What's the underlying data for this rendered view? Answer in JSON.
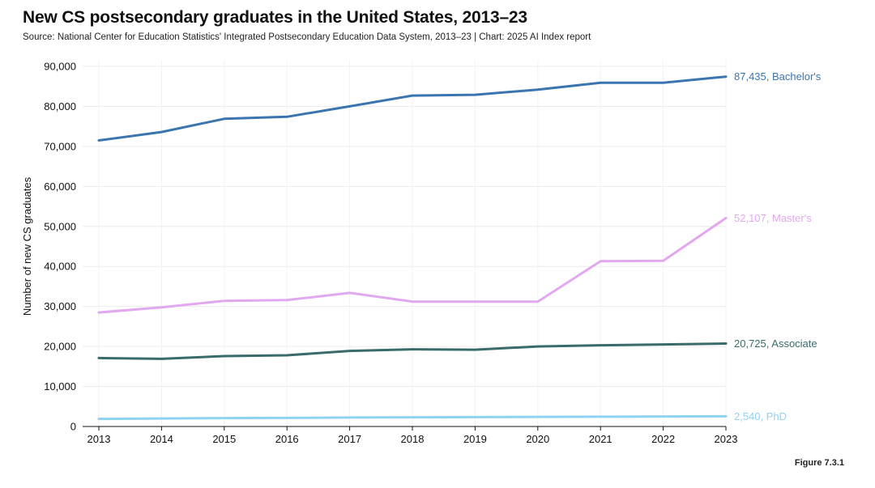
{
  "title": "New CS postsecondary graduates in the United States, 2013–23",
  "subtitle": "Source: National Center for Education Statistics' Integrated Postsecondary Education Data System, 2013–23 | Chart: 2025 AI Index report",
  "figure_label": "Figure 7.3.1",
  "chart_data": {
    "type": "line",
    "title": "New CS postsecondary graduates in the United States, 2013–23",
    "xlabel": "",
    "ylabel": "Number of new CS graduates",
    "ylim": [
      0,
      90000
    ],
    "yticks": [
      0,
      10000,
      20000,
      30000,
      40000,
      50000,
      60000,
      70000,
      80000,
      90000
    ],
    "ytick_labels": [
      "0",
      "10,000",
      "20,000",
      "30,000",
      "40,000",
      "50,000",
      "60,000",
      "70,000",
      "80,000",
      "90,000"
    ],
    "x": [
      "2013",
      "2014",
      "2015",
      "2016",
      "2017",
      "2018",
      "2019",
      "2020",
      "2021",
      "2022",
      "2023"
    ],
    "grid": true,
    "legend": "inline-end-labels",
    "series": [
      {
        "name": "Bachelor's",
        "end_label": "87,435, Bachelor's",
        "color": "#3a75b0",
        "values": [
          71500,
          73600,
          76900,
          77400,
          80000,
          82700,
          82900,
          84200,
          85900,
          85900,
          87435
        ]
      },
      {
        "name": "Master's",
        "end_label": "52,107, Master's",
        "color": "#e2a8ef",
        "values": [
          28500,
          29800,
          31400,
          31600,
          33400,
          31200,
          31200,
          31200,
          41300,
          41400,
          52107
        ]
      },
      {
        "name": "Associate",
        "end_label": "20,725, Associate",
        "color": "#3a6b6b",
        "values": [
          17100,
          16900,
          17600,
          17800,
          18900,
          19300,
          19200,
          20000,
          20300,
          20500,
          20725
        ]
      },
      {
        "name": "PhD",
        "end_label": "2,540, PhD",
        "color": "#8ed4f2",
        "values": [
          1900,
          2000,
          2100,
          2150,
          2250,
          2300,
          2350,
          2400,
          2450,
          2500,
          2540
        ]
      }
    ]
  }
}
